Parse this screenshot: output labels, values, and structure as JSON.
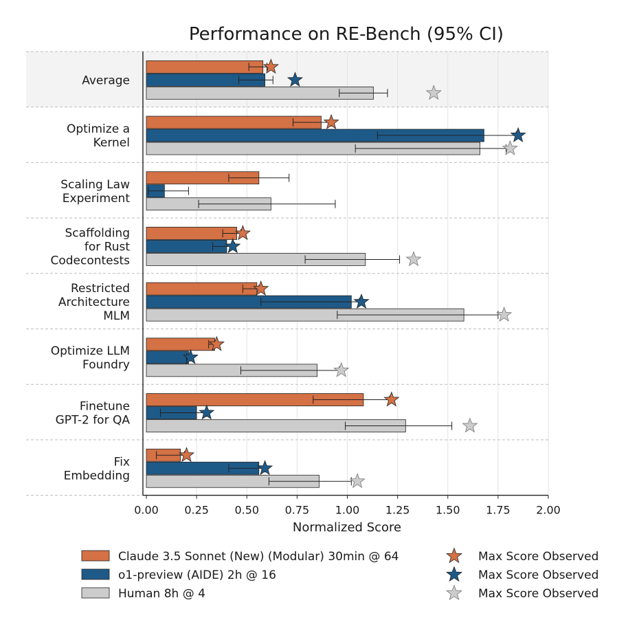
{
  "chart_data": {
    "type": "bar",
    "orientation": "horizontal",
    "title": "Performance on RE-Bench (95% CI)",
    "xlabel": "Normalized Score",
    "ylabel": "",
    "xlim": [
      0,
      2.0
    ],
    "xticks": [
      "0.00",
      "0.25",
      "0.50",
      "0.75",
      "1.00",
      "1.25",
      "1.50",
      "1.75",
      "2.00"
    ],
    "grid": true,
    "legend_position": "bottom",
    "categories": [
      "Average",
      "Optimize a\nKernel",
      "Scaling Law\nExperiment",
      "Scaffolding\nfor Rust\nCodecontests",
      "Restricted\nArchitecture\nMLM",
      "Optimize LLM\nFoundry",
      "Finetune\nGPT-2 for QA",
      "Fix\nEmbedding"
    ],
    "series": [
      {
        "name": "Claude 3.5 Sonnet (New) (Modular) 30min @ 64",
        "color": "#d47145",
        "values": [
          0.58,
          0.87,
          0.56,
          0.45,
          0.55,
          0.34,
          1.08,
          0.17
        ],
        "ci_low": [
          0.51,
          0.73,
          0.41,
          0.38,
          0.48,
          0.31,
          0.83,
          0.05
        ],
        "ci_high": [
          0.6,
          0.92,
          0.71,
          0.47,
          0.56,
          0.34,
          1.21,
          0.19
        ],
        "max_observed": [
          0.62,
          0.92,
          null,
          0.48,
          0.57,
          0.35,
          1.22,
          0.2
        ]
      },
      {
        "name": "o1-preview (AIDE) 2h @ 16",
        "color": "#1e5a88",
        "values": [
          0.59,
          1.68,
          0.09,
          0.4,
          1.02,
          0.21,
          0.25,
          0.56
        ],
        "ci_low": [
          0.46,
          1.15,
          0.01,
          0.33,
          0.57,
          0.2,
          0.07,
          0.41
        ],
        "ci_high": [
          0.63,
          1.84,
          0.21,
          0.44,
          1.06,
          0.22,
          0.3,
          0.59
        ],
        "max_observed": [
          0.74,
          1.85,
          null,
          0.43,
          1.07,
          0.22,
          0.3,
          0.59
        ]
      },
      {
        "name": "Human 8h @ 4",
        "color": "#cccccc",
        "values": [
          1.13,
          1.66,
          0.62,
          1.09,
          1.58,
          0.85,
          1.29,
          0.86
        ],
        "ci_low": [
          0.96,
          1.04,
          0.26,
          0.79,
          0.95,
          0.47,
          0.99,
          0.61
        ],
        "ci_high": [
          1.2,
          1.79,
          0.94,
          1.26,
          1.75,
          0.96,
          1.52,
          1.02
        ],
        "max_observed": [
          1.43,
          1.81,
          null,
          1.33,
          1.78,
          0.97,
          1.61,
          1.05
        ]
      }
    ],
    "legend": [
      {
        "label": "Claude 3.5 Sonnet (New) (Modular) 30min @ 64",
        "star_label": "Max Score Observed"
      },
      {
        "label": "o1-preview (AIDE) 2h @ 16",
        "star_label": "Max Score Observed"
      },
      {
        "label": "Human 8h @ 4",
        "star_label": "Max Score Observed"
      }
    ]
  }
}
